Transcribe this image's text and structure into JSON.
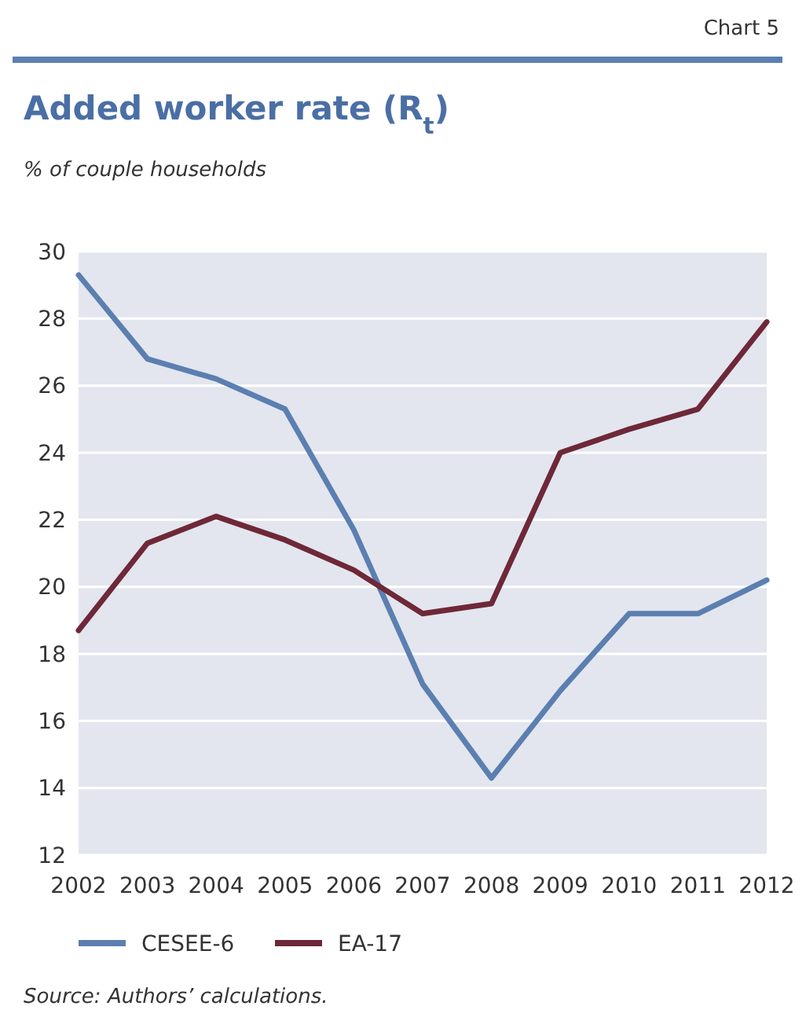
{
  "chart_data": {
    "type": "line",
    "title": "Added worker rate (R$_{t}$)",
    "ylabel": "% of couple households",
    "annotations": [
      "Chart 5",
      "Source: Authors’ calculations."
    ],
    "x": [
      2002,
      2003,
      2004,
      2005,
      2006,
      2007,
      2008,
      2009,
      2010,
      2011,
      2012
    ],
    "xlim": [
      2002,
      2012
    ],
    "xticks": [
      2002,
      2003,
      2004,
      2005,
      2006,
      2007,
      2008,
      2009,
      2010,
      2011,
      2012
    ],
    "ylim": [
      12,
      30
    ],
    "yticks": [
      12,
      14,
      16,
      18,
      20,
      22,
      24,
      26,
      28,
      30
    ],
    "grid": "y",
    "legend": "bottom",
    "line_style": "solid",
    "marker": "none",
    "series": [
      {
        "name": "CESEE-6",
        "color": "#5b7fb0",
        "values": [
          29.3,
          26.8,
          26.2,
          25.3,
          21.7,
          17.1,
          14.3,
          16.9,
          19.2,
          19.2,
          20.2
        ]
      },
      {
        "name": "EA-17",
        "color": "#6e2838",
        "values": [
          18.7,
          21.3,
          22.1,
          21.4,
          20.5,
          19.2,
          19.5,
          24.0,
          24.7,
          25.3,
          27.9
        ]
      }
    ]
  }
}
